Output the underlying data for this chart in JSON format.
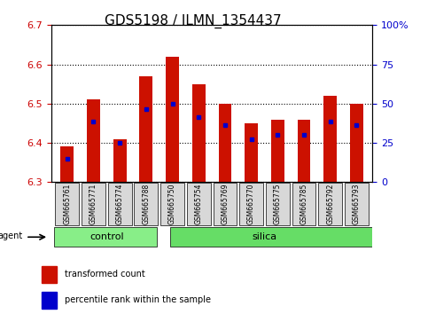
{
  "title": "GDS5198 / ILMN_1354437",
  "samples": [
    "GSM665761",
    "GSM665771",
    "GSM665774",
    "GSM665788",
    "GSM665750",
    "GSM665754",
    "GSM665769",
    "GSM665770",
    "GSM665775",
    "GSM665785",
    "GSM665792",
    "GSM665793"
  ],
  "bar_bottoms": [
    6.3,
    6.3,
    6.3,
    6.3,
    6.3,
    6.3,
    6.3,
    6.3,
    6.3,
    6.3,
    6.3,
    6.3
  ],
  "bar_tops": [
    6.39,
    6.51,
    6.41,
    6.57,
    6.62,
    6.55,
    6.5,
    6.45,
    6.46,
    6.46,
    6.52,
    6.5
  ],
  "blue_dot_positions": [
    6.36,
    6.455,
    6.4,
    6.487,
    6.5,
    6.465,
    6.445,
    6.41,
    6.42,
    6.42,
    6.455,
    6.445
  ],
  "ylim_left": [
    6.3,
    6.7
  ],
  "ylim_right": [
    0,
    100
  ],
  "yticks_left": [
    6.3,
    6.4,
    6.5,
    6.6,
    6.7
  ],
  "yticks_right": [
    0,
    25,
    50,
    75,
    100
  ],
  "ytick_labels_right": [
    "0",
    "25",
    "50",
    "75",
    "100%"
  ],
  "bar_color": "#cc1100",
  "dot_color": "#0000cc",
  "control_samples": 4,
  "control_label": "control",
  "silica_label": "silica",
  "agent_label": "agent",
  "legend_bar_label": "transformed count",
  "legend_dot_label": "percentile rank within the sample",
  "control_color": "#88ee88",
  "silica_color": "#66dd66",
  "title_fontsize": 11,
  "tick_fontsize": 8,
  "axis_label_color_left": "#cc0000",
  "axis_label_color_right": "#0000cc",
  "bar_width": 0.5
}
